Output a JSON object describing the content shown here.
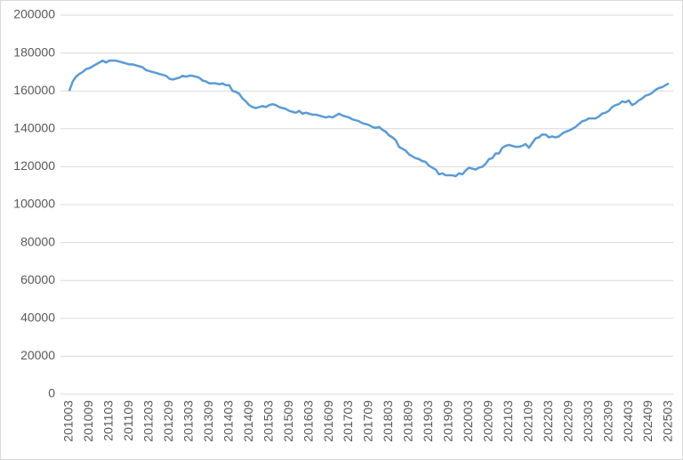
{
  "chart_data": {
    "type": "line",
    "categories": [
      "201003",
      null,
      null,
      null,
      null,
      null,
      "201009",
      null,
      null,
      null,
      null,
      null,
      "201103",
      null,
      null,
      null,
      null,
      null,
      "201109",
      null,
      null,
      null,
      null,
      null,
      "201203",
      null,
      null,
      null,
      null,
      null,
      "201209",
      null,
      null,
      null,
      null,
      null,
      "201303",
      null,
      null,
      null,
      null,
      null,
      "201309",
      null,
      null,
      null,
      null,
      null,
      "201403",
      null,
      null,
      null,
      null,
      null,
      "201409",
      null,
      null,
      null,
      null,
      null,
      "201503",
      null,
      null,
      null,
      null,
      null,
      "201509",
      null,
      null,
      null,
      null,
      null,
      "201603",
      null,
      null,
      null,
      null,
      null,
      "201609",
      null,
      null,
      null,
      null,
      null,
      "201703",
      null,
      null,
      null,
      null,
      null,
      "201709",
      null,
      null,
      null,
      null,
      null,
      "201803",
      null,
      null,
      null,
      null,
      null,
      "201809",
      null,
      null,
      null,
      null,
      null,
      "201903",
      null,
      null,
      null,
      null,
      null,
      "201909",
      null,
      null,
      null,
      null,
      null,
      "202003",
      null,
      null,
      null,
      null,
      null,
      "202009",
      null,
      null,
      null,
      null,
      null,
      "202103",
      null,
      null,
      null,
      null,
      null,
      "202109",
      null,
      null,
      null,
      null,
      null,
      "202203",
      null,
      null,
      null,
      null,
      null,
      "202209",
      null,
      null,
      null,
      null,
      null,
      "202303",
      null,
      null,
      null,
      null,
      null,
      "202309",
      null,
      null,
      null,
      null,
      null,
      "202403",
      null,
      null,
      null,
      null,
      null,
      "202409",
      null,
      null,
      null,
      null,
      null,
      "202503"
    ],
    "series": [
      {
        "color": "#5b9bd5",
        "values": [
          160000,
          165000,
          167500,
          169000,
          170000,
          171500,
          172000,
          173000,
          174000,
          175000,
          176000,
          175000,
          176000,
          176000,
          176000,
          175500,
          175000,
          174500,
          174000,
          174000,
          173500,
          173000,
          172500,
          171000,
          170500,
          170000,
          169500,
          169000,
          168500,
          168000,
          166500,
          166000,
          166500,
          167000,
          168000,
          167500,
          168000,
          168000,
          167500,
          167000,
          165500,
          165000,
          164000,
          164000,
          164000,
          163500,
          164000,
          163000,
          163000,
          160000,
          159500,
          158500,
          156000,
          154500,
          152500,
          151500,
          151000,
          151500,
          152000,
          151500,
          152500,
          153000,
          152500,
          151500,
          151000,
          150500,
          149500,
          149000,
          148500,
          149500,
          148000,
          148500,
          148000,
          147500,
          147500,
          147000,
          146500,
          146000,
          146500,
          146000,
          147000,
          148000,
          147000,
          146500,
          146000,
          145000,
          144500,
          144000,
          143000,
          142500,
          142000,
          141000,
          140500,
          141000,
          139500,
          138500,
          136500,
          135500,
          134000,
          130500,
          129500,
          128500,
          126500,
          125500,
          124500,
          124000,
          123000,
          122500,
          120500,
          119500,
          118500,
          116000,
          116500,
          115500,
          115500,
          115500,
          115000,
          116500,
          116000,
          118000,
          119500,
          119000,
          118500,
          119500,
          120000,
          121500,
          124000,
          124500,
          127000,
          127000,
          130000,
          131000,
          131500,
          131000,
          130500,
          130500,
          131000,
          132000,
          130000,
          132500,
          135000,
          135500,
          137000,
          137000,
          135500,
          136000,
          135500,
          136000,
          137500,
          138500,
          139000,
          140000,
          141000,
          142500,
          144000,
          144500,
          145500,
          145500,
          145500,
          146500,
          148000,
          148500,
          149500,
          151500,
          152500,
          153000,
          154500,
          154000,
          155000,
          152500,
          153500,
          155000,
          156000,
          157500,
          158000,
          159000,
          160500,
          161500,
          162000,
          163000,
          164000
        ]
      }
    ],
    "ylim": [
      0,
      200000
    ],
    "yticks": [
      0,
      20000,
      40000,
      60000,
      80000,
      100000,
      120000,
      140000,
      160000,
      180000,
      200000
    ],
    "grid": true
  }
}
